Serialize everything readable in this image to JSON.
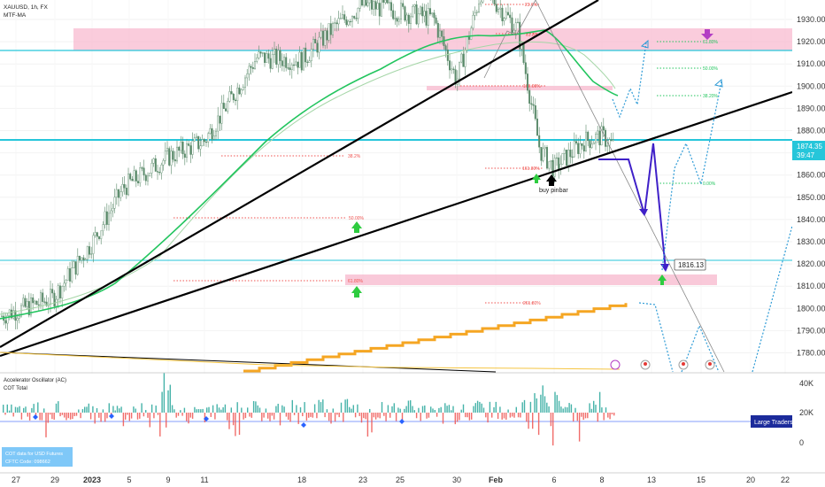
{
  "header": {
    "symbol": "XAUUSD, 1h, FX",
    "indicator": "MTF-MA"
  },
  "price_axis": {
    "labels": [
      "1930.00",
      "1920.00",
      "1910.00",
      "1900.00",
      "1890.00",
      "1880.00",
      "1870.00",
      "1860.00",
      "1850.00",
      "1840.00",
      "1830.00",
      "1820.00",
      "1810.00",
      "1800.00",
      "1790.00",
      "1780.00"
    ],
    "current_price": "1874.35",
    "countdown": "39:47",
    "target_price": "1816.13"
  },
  "annotation": {
    "pattern": "buy pinbar"
  },
  "fib_levels": {
    "pct_236_a": "23.6%",
    "pct_618_a": "61.8%",
    "pct_100": "100.00%",
    "pct_382_a": "38.2%",
    "pct_1618": "161.80%",
    "pct_50_a": "50.00%",
    "pct_618_b": "61.80%",
    "pct_2618": "261.80%",
    "pct_618_c": "61.80%",
    "pct_50_b": "50.00%",
    "pct_382_b": "38.20%",
    "pct_0": "0.00%"
  },
  "oscillator": {
    "title": "Accelerator Oscillator (AC)",
    "cot": "COT Total",
    "axis": [
      "40K",
      "20K",
      "0"
    ],
    "legend": "Large Traders",
    "info_line1": "COT data for USD Futures",
    "info_line2": "CFTC Code: 098662"
  },
  "time_axis": [
    "27",
    "29",
    "2023",
    "5",
    "9",
    "11",
    "18",
    "23",
    "25",
    "30",
    "Feb",
    "6",
    "8",
    "13",
    "15",
    "20",
    "22"
  ],
  "chart_data": {
    "type": "line",
    "title": "XAUUSD, 1h, FX",
    "ylim": [
      1776,
      1937
    ],
    "current_price": 1874.35,
    "target_price": 1816.13,
    "horizontal_levels": [
      1917,
      1875.5,
      1824
    ],
    "zones": [
      [
        1921.5,
        1926.5
      ],
      [
        1899,
        1900
      ],
      [
        1812,
        1817
      ]
    ],
    "fib_levels_percent": {
      "23.6%": 1935,
      "61.8%": 1922,
      "100.00%": 1900.5,
      "38.2%": 1868,
      "161.80%": 1863.5,
      "50.00%": 1845,
      "61.80%": 1815,
      "261.80%": 1806
    },
    "projection_levels_percent": {
      "61.80%": 1920.5,
      "50.00%": 1909,
      "38.20%": 1897,
      "0.00%": 1858
    },
    "price_path": [
      [
        "Dec 27",
        1800
      ],
      [
        "Dec 29",
        1808
      ],
      [
        "Jan 2",
        1832
      ],
      [
        "Jan 5",
        1856
      ],
      [
        "Jan 9",
        1869
      ],
      [
        "Jan 11",
        1876
      ],
      [
        "Jan 16",
        1912
      ],
      [
        "Jan 18",
        1911
      ],
      [
        "Jan 20",
        1926
      ],
      [
        "Jan 23",
        1935
      ],
      [
        "Jan 25",
        1932
      ],
      [
        "Jan 27",
        1929
      ],
      [
        "Jan 30",
        1902
      ],
      [
        "Feb 1",
        1943
      ],
      [
        "Feb 2",
        1924
      ],
      [
        "Feb 3",
        1872
      ],
      [
        "Feb 6",
        1864
      ],
      [
        "Feb 7",
        1876
      ],
      [
        "Feb 8",
        1878
      ],
      [
        "Feb 9",
        1874
      ]
    ],
    "oscillator_axis": [
      40000,
      20000,
      0
    ]
  }
}
